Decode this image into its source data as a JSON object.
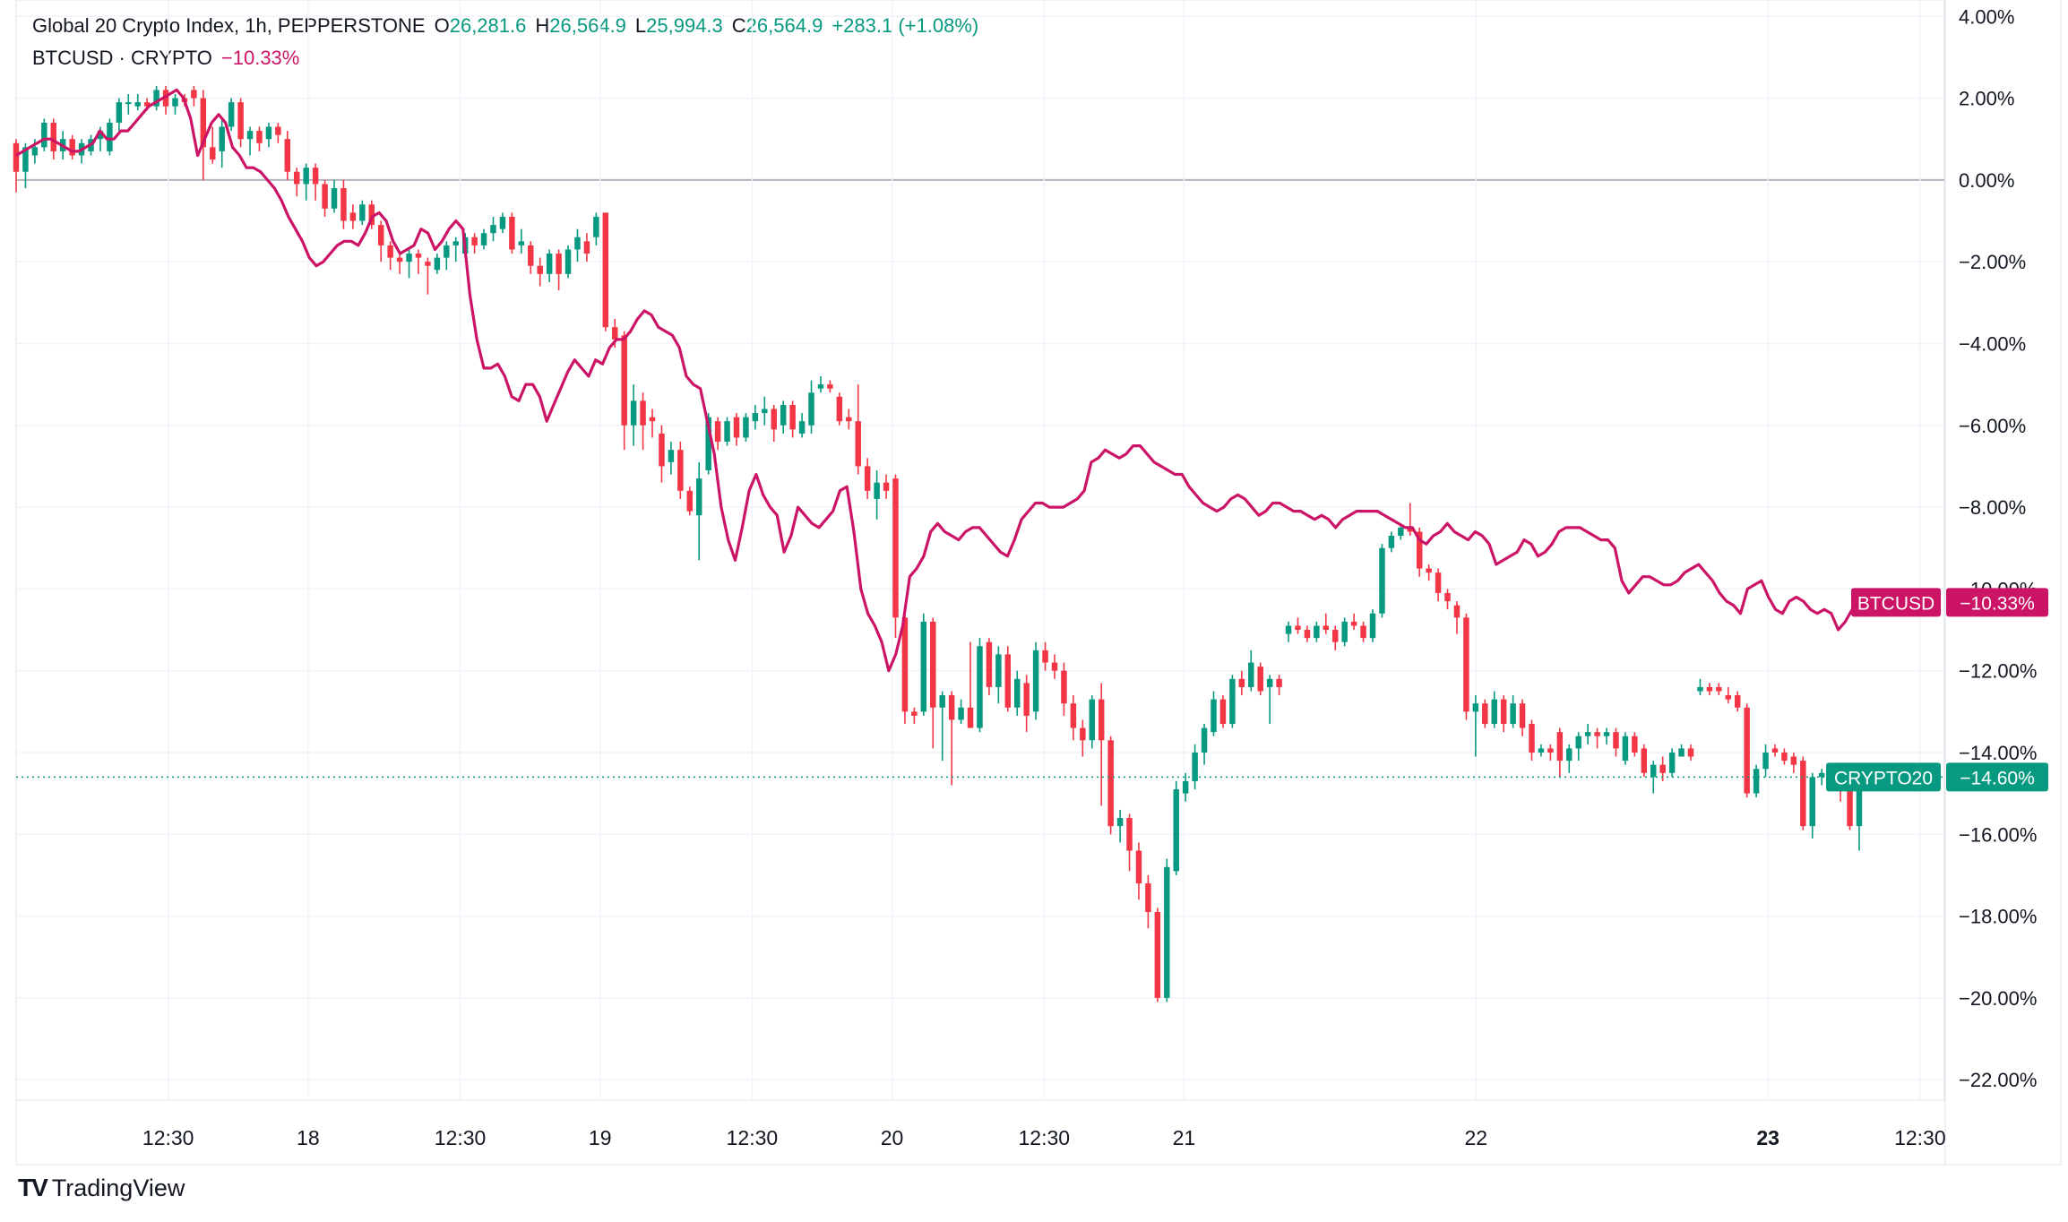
{
  "legend": {
    "symbol_title": "Global 20 Crypto Index, 1h, PEPPERSTONE",
    "open_label": "O",
    "open": "26,281.6",
    "high_label": "H",
    "high": "26,564.9",
    "low_label": "L",
    "low": "25,994.3",
    "close_label": "C",
    "close": "26,564.9",
    "change": "+283.1 (+1.08%)",
    "compare_symbol": "BTCUSD · CRYPTO",
    "compare_change": "−10.33%"
  },
  "branding": {
    "logo_text": "TradingView",
    "logo_icon": "tradingview-logo-icon"
  },
  "colors": {
    "up": "#089981",
    "down": "#f23645",
    "compare": "#cc1466",
    "grid": "#f0f3fa",
    "zero": "#b2b5be"
  },
  "chart_data": {
    "type": "candlestick-with-line",
    "y_unit": "%",
    "ylim": [
      -22.5,
      4.4
    ],
    "y_ticks": [
      "4.00%",
      "2.00%",
      "0.00%",
      "−2.00%",
      "−4.00%",
      "−6.00%",
      "−8.00%",
      "−10.00%",
      "−12.00%",
      "−14.00%",
      "−16.00%",
      "−18.00%",
      "−20.00%",
      "−22.00%"
    ],
    "y_tick_values": [
      4,
      2,
      0,
      -2,
      -4,
      -6,
      -8,
      -10,
      -12,
      -14,
      -16,
      -18,
      -20,
      -22
    ],
    "x_ticks": [
      "12:30",
      "18",
      "12:30",
      "19",
      "12:30",
      "20",
      "12:30",
      "21",
      "22",
      "23",
      "12:30"
    ],
    "x_tick_hours": [
      12.5,
      24,
      36.5,
      48,
      60.5,
      72,
      84.5,
      96,
      120,
      144,
      156.5
    ],
    "x_tick_bold": [
      false,
      false,
      false,
      false,
      false,
      false,
      false,
      false,
      false,
      true,
      false
    ],
    "x_range_hours": [
      0,
      158.5
    ],
    "badges": [
      {
        "label": "BTCUSD",
        "value": "−10.33%",
        "y": -10.33,
        "color": "#cc1466"
      },
      {
        "label": "CRYPTO20",
        "value": "−14.60%",
        "y": -14.6,
        "color": "#089981"
      }
    ],
    "candles": [
      [
        0.9,
        0.2,
        1.0,
        -0.3
      ],
      [
        0.2,
        0.8,
        0.9,
        -0.2
      ],
      [
        0.6,
        0.8,
        1.0,
        0.4
      ],
      [
        0.8,
        1.4,
        1.5,
        0.7
      ],
      [
        1.4,
        0.7,
        1.5,
        0.5
      ],
      [
        0.7,
        1.0,
        1.2,
        0.5
      ],
      [
        1.0,
        0.6,
        1.1,
        0.5
      ],
      [
        0.6,
        0.9,
        1.0,
        0.4
      ],
      [
        0.7,
        1.0,
        1.1,
        0.6
      ],
      [
        1.0,
        1.2,
        1.3,
        0.7
      ],
      [
        0.7,
        1.4,
        1.5,
        0.6
      ],
      [
        1.4,
        1.9,
        2.0,
        1.2
      ],
      [
        1.9,
        1.9,
        2.1,
        1.6
      ],
      [
        1.8,
        1.9,
        2.1,
        1.7
      ],
      [
        1.9,
        1.8,
        2.0,
        1.7
      ],
      [
        1.8,
        2.2,
        2.3,
        1.7
      ],
      [
        2.2,
        1.8,
        2.3,
        1.6
      ],
      [
        1.8,
        2.0,
        2.1,
        1.6
      ],
      [
        2.0,
        1.9,
        2.1,
        1.8
      ],
      [
        2.2,
        2.0,
        2.3,
        1.8
      ],
      [
        2.0,
        0.8,
        2.2,
        0.0
      ],
      [
        0.8,
        0.5,
        1.3,
        0.4
      ],
      [
        0.7,
        1.3,
        1.5,
        0.3
      ],
      [
        1.3,
        1.9,
        2.0,
        1.2
      ],
      [
        1.9,
        1.0,
        2.0,
        0.8
      ],
      [
        1.0,
        1.2,
        1.3,
        0.6
      ],
      [
        1.2,
        0.9,
        1.3,
        0.7
      ],
      [
        1.0,
        1.3,
        1.4,
        0.8
      ],
      [
        1.3,
        1.1,
        1.4,
        0.9
      ],
      [
        1.0,
        0.2,
        1.2,
        0.0
      ],
      [
        0.2,
        -0.1,
        0.3,
        -0.4
      ],
      [
        -0.1,
        0.3,
        0.4,
        -0.5
      ],
      [
        0.3,
        -0.1,
        0.4,
        -0.5
      ],
      [
        -0.1,
        -0.7,
        0.0,
        -0.9
      ],
      [
        -0.7,
        -0.2,
        0.0,
        -0.8
      ],
      [
        -0.2,
        -1.0,
        0.0,
        -1.2
      ],
      [
        -0.8,
        -1.0,
        -0.6,
        -1.2
      ],
      [
        -1.0,
        -0.6,
        -0.5,
        -1.1
      ],
      [
        -0.6,
        -1.1,
        -0.5,
        -1.2
      ],
      [
        -1.1,
        -1.6,
        -1.0,
        -2.0
      ],
      [
        -1.6,
        -1.9,
        -1.5,
        -2.2
      ],
      [
        -1.9,
        -2.0,
        -1.8,
        -2.3
      ],
      [
        -2.0,
        -1.8,
        -1.7,
        -2.4
      ],
      [
        -1.8,
        -1.9,
        -1.7,
        -2.3
      ],
      [
        -2.0,
        -2.1,
        -1.9,
        -2.8
      ],
      [
        -2.2,
        -1.9,
        -1.8,
        -2.3
      ],
      [
        -1.9,
        -1.6,
        -1.5,
        -2.2
      ],
      [
        -1.6,
        -1.5,
        -1.4,
        -2.0
      ],
      [
        -1.8,
        -1.4,
        -1.3,
        -1.9
      ],
      [
        -1.4,
        -1.6,
        -1.3,
        -1.8
      ],
      [
        -1.6,
        -1.3,
        -1.2,
        -1.7
      ],
      [
        -1.3,
        -1.1,
        -0.9,
        -1.5
      ],
      [
        -1.2,
        -0.9,
        -0.8,
        -1.3
      ],
      [
        -0.9,
        -1.7,
        -0.8,
        -1.8
      ],
      [
        -1.6,
        -1.5,
        -1.2,
        -1.8
      ],
      [
        -1.6,
        -2.1,
        -1.5,
        -2.3
      ],
      [
        -2.1,
        -2.3,
        -1.9,
        -2.6
      ],
      [
        -2.3,
        -1.8,
        -1.7,
        -2.5
      ],
      [
        -1.8,
        -2.3,
        -1.7,
        -2.7
      ],
      [
        -2.3,
        -1.7,
        -1.6,
        -2.4
      ],
      [
        -1.7,
        -1.4,
        -1.2,
        -2.0
      ],
      [
        -1.5,
        -1.8,
        -1.3,
        -2.0
      ],
      [
        -1.4,
        -0.9,
        -0.8,
        -1.6
      ],
      [
        -0.8,
        -3.6,
        -0.8,
        -3.7
      ],
      [
        -3.6,
        -3.9,
        -3.4,
        -4.1
      ],
      [
        -3.8,
        -6.0,
        -3.7,
        -6.6
      ],
      [
        -6.0,
        -5.4,
        -5.0,
        -6.5
      ],
      [
        -5.4,
        -6.0,
        -5.2,
        -6.6
      ],
      [
        -5.8,
        -5.9,
        -5.6,
        -6.3
      ],
      [
        -6.2,
        -7.0,
        -6.0,
        -7.4
      ],
      [
        -6.9,
        -6.6,
        -6.4,
        -7.2
      ],
      [
        -6.6,
        -7.6,
        -6.4,
        -7.8
      ],
      [
        -7.6,
        -8.1,
        -7.5,
        -8.2
      ],
      [
        -8.2,
        -7.3,
        -6.9,
        -9.3
      ],
      [
        -7.1,
        -5.8,
        -5.7,
        -7.2
      ],
      [
        -5.9,
        -6.4,
        -5.8,
        -6.6
      ],
      [
        -6.4,
        -5.9,
        -5.8,
        -6.5
      ],
      [
        -5.8,
        -6.3,
        -5.7,
        -6.5
      ],
      [
        -6.3,
        -5.8,
        -5.7,
        -6.4
      ],
      [
        -5.9,
        -5.7,
        -5.5,
        -6.1
      ],
      [
        -5.7,
        -5.6,
        -5.3,
        -6.0
      ],
      [
        -5.6,
        -6.1,
        -5.5,
        -6.4
      ],
      [
        -6.0,
        -5.5,
        -5.4,
        -6.2
      ],
      [
        -5.5,
        -6.1,
        -5.4,
        -6.3
      ],
      [
        -6.2,
        -5.9,
        -5.7,
        -6.3
      ],
      [
        -6.0,
        -5.2,
        -4.9,
        -6.2
      ],
      [
        -5.1,
        -5.0,
        -4.8,
        -5.2
      ],
      [
        -5.0,
        -5.1,
        -4.9,
        -5.2
      ],
      [
        -5.3,
        -5.9,
        -5.2,
        -6.0
      ],
      [
        -5.8,
        -5.9,
        -5.6,
        -6.1
      ],
      [
        -5.9,
        -7.0,
        -5.0,
        -7.2
      ],
      [
        -7.0,
        -7.6,
        -6.8,
        -7.8
      ],
      [
        -7.8,
        -7.4,
        -7.1,
        -8.3
      ],
      [
        -7.4,
        -7.6,
        -7.2,
        -7.8
      ],
      [
        -7.3,
        -10.7,
        -7.2,
        -11.2
      ],
      [
        -10.7,
        -13.0,
        -10.6,
        -13.3
      ],
      [
        -13.0,
        -13.1,
        -12.9,
        -13.3
      ],
      [
        -13.0,
        -10.8,
        -10.6,
        -13.1
      ],
      [
        -10.8,
        -12.9,
        -10.7,
        -13.9
      ],
      [
        -12.9,
        -12.6,
        -12.5,
        -14.2
      ],
      [
        -12.6,
        -13.2,
        -12.5,
        -14.8
      ],
      [
        -13.2,
        -12.9,
        -12.7,
        -13.3
      ],
      [
        -12.9,
        -13.4,
        -11.3,
        -13.4
      ],
      [
        -13.4,
        -11.4,
        -11.2,
        -13.5
      ],
      [
        -11.3,
        -12.4,
        -11.2,
        -12.6
      ],
      [
        -12.4,
        -11.6,
        -11.4,
        -12.8
      ],
      [
        -11.6,
        -12.9,
        -11.4,
        -13.0
      ],
      [
        -12.9,
        -12.2,
        -12.0,
        -13.1
      ],
      [
        -12.3,
        -13.1,
        -12.1,
        -13.5
      ],
      [
        -13.0,
        -11.5,
        -11.3,
        -13.2
      ],
      [
        -11.5,
        -11.8,
        -11.3,
        -12.0
      ],
      [
        -11.8,
        -12.0,
        -11.6,
        -12.2
      ],
      [
        -12.0,
        -12.8,
        -11.8,
        -13.1
      ],
      [
        -12.8,
        -13.4,
        -12.6,
        -13.7
      ],
      [
        -13.4,
        -13.7,
        -13.2,
        -14.1
      ],
      [
        -13.7,
        -12.7,
        -12.6,
        -13.9
      ],
      [
        -12.7,
        -13.7,
        -12.3,
        -15.3
      ],
      [
        -13.7,
        -15.8,
        -13.6,
        -16.0
      ],
      [
        -15.8,
        -15.6,
        -15.4,
        -16.2
      ],
      [
        -15.6,
        -16.4,
        -15.5,
        -16.9
      ],
      [
        -16.4,
        -17.2,
        -16.2,
        -17.6
      ],
      [
        -17.2,
        -17.9,
        -17.0,
        -18.3
      ],
      [
        -17.9,
        -20.0,
        -17.8,
        -20.1
      ],
      [
        -20.0,
        -16.8,
        -16.6,
        -20.1
      ],
      [
        -16.9,
        -14.9,
        -14.7,
        -17.0
      ],
      [
        -15.0,
        -14.7,
        -14.5,
        -15.2
      ],
      [
        -14.7,
        -14.0,
        -13.8,
        -14.9
      ],
      [
        -14.0,
        -13.4,
        -13.3,
        -14.3
      ],
      [
        -13.5,
        -12.7,
        -12.5,
        -13.6
      ],
      [
        -12.7,
        -13.3,
        -12.6,
        -13.4
      ],
      [
        -13.3,
        -12.2,
        -12.1,
        -13.4
      ],
      [
        -12.2,
        -12.4,
        -12.0,
        -12.6
      ],
      [
        -12.4,
        -11.8,
        -11.5,
        -12.5
      ],
      [
        -11.9,
        -12.5,
        -11.8,
        -12.6
      ],
      [
        -12.4,
        -12.2,
        -12.1,
        -13.3
      ],
      [
        -12.2,
        -12.4,
        -12.1,
        -12.6
      ],
      [
        -11.1,
        -10.9,
        -10.8,
        -11.3
      ],
      [
        -10.9,
        -11.0,
        -10.7,
        -11.1
      ],
      [
        -11.0,
        -11.2,
        -10.9,
        -11.3
      ],
      [
        -11.2,
        -10.9,
        -10.8,
        -11.3
      ],
      [
        -10.9,
        -11.0,
        -10.6,
        -11.1
      ],
      [
        -11.0,
        -11.3,
        -10.9,
        -11.5
      ],
      [
        -11.3,
        -10.8,
        -10.7,
        -11.4
      ],
      [
        -10.8,
        -10.9,
        -10.6,
        -11.0
      ],
      [
        -10.9,
        -11.2,
        -10.8,
        -11.3
      ],
      [
        -11.2,
        -10.6,
        -10.5,
        -11.3
      ],
      [
        -10.6,
        -9.0,
        -8.9,
        -10.7
      ],
      [
        -9.0,
        -8.7,
        -8.6,
        -9.1
      ],
      [
        -8.7,
        -8.5,
        -8.4,
        -8.8
      ],
      [
        -8.5,
        -8.6,
        -7.9,
        -8.7
      ],
      [
        -8.6,
        -9.5,
        -8.5,
        -9.7
      ],
      [
        -9.5,
        -9.6,
        -9.4,
        -9.8
      ],
      [
        -9.6,
        -10.1,
        -9.5,
        -10.3
      ],
      [
        -10.1,
        -10.3,
        -10.0,
        -10.5
      ],
      [
        -10.4,
        -10.7,
        -10.3,
        -11.1
      ],
      [
        -10.7,
        -13.0,
        -10.6,
        -13.2
      ],
      [
        -13.0,
        -12.8,
        -12.6,
        -14.1
      ],
      [
        -12.8,
        -13.3,
        -12.7,
        -13.4
      ],
      [
        -13.3,
        -12.7,
        -12.5,
        -13.4
      ],
      [
        -12.7,
        -13.3,
        -12.6,
        -13.5
      ],
      [
        -13.3,
        -12.8,
        -12.6,
        -13.4
      ],
      [
        -12.8,
        -13.4,
        -12.7,
        -13.6
      ],
      [
        -13.3,
        -14.0,
        -13.2,
        -14.2
      ],
      [
        -14.0,
        -13.9,
        -13.8,
        -14.1
      ],
      [
        -13.9,
        -14.0,
        -13.8,
        -14.2
      ],
      [
        -13.5,
        -14.2,
        -13.4,
        -14.6
      ],
      [
        -14.2,
        -13.9,
        -13.8,
        -14.5
      ],
      [
        -13.9,
        -13.6,
        -13.5,
        -14.2
      ],
      [
        -13.6,
        -13.5,
        -13.3,
        -13.8
      ],
      [
        -13.5,
        -13.6,
        -13.4,
        -13.9
      ],
      [
        -13.6,
        -13.5,
        -13.4,
        -13.8
      ],
      [
        -13.5,
        -13.9,
        -13.4,
        -14.1
      ],
      [
        -14.2,
        -13.6,
        -13.5,
        -14.3
      ],
      [
        -13.6,
        -14.0,
        -13.5,
        -14.1
      ],
      [
        -13.9,
        -14.5,
        -13.8,
        -14.6
      ],
      [
        -14.6,
        -14.3,
        -14.2,
        -15.0
      ],
      [
        -14.3,
        -14.5,
        -14.1,
        -14.7
      ],
      [
        -14.5,
        -14.0,
        -13.9,
        -14.6
      ],
      [
        -14.1,
        -13.9,
        -13.8,
        -14.0
      ],
      [
        -13.9,
        -14.1,
        -13.8,
        -14.2
      ],
      [
        -12.5,
        -12.4,
        -12.2,
        -12.6
      ],
      [
        -12.4,
        -12.5,
        -12.3,
        -12.6
      ],
      [
        -12.4,
        -12.5,
        -12.3,
        -12.6
      ],
      [
        -12.6,
        -12.7,
        -12.4,
        -12.8
      ],
      [
        -12.6,
        -12.9,
        -12.5,
        -13.0
      ],
      [
        -12.9,
        -15.0,
        -12.8,
        -15.1
      ],
      [
        -15.0,
        -14.4,
        -14.3,
        -15.1
      ],
      [
        -14.4,
        -14.0,
        -13.8,
        -14.6
      ],
      [
        -13.9,
        -14.0,
        -13.8,
        -14.1
      ],
      [
        -14.0,
        -14.2,
        -13.9,
        -14.3
      ],
      [
        -14.1,
        -14.3,
        -14.0,
        -14.5
      ],
      [
        -14.2,
        -15.8,
        -14.1,
        -15.9
      ],
      [
        -15.8,
        -14.6,
        -14.5,
        -16.1
      ],
      [
        -14.6,
        -14.5,
        -14.4,
        -14.8
      ],
      [
        -14.5,
        -14.6,
        -14.4,
        -14.7
      ],
      [
        -14.5,
        -14.6,
        -14.4,
        -15.2
      ],
      [
        -14.6,
        -15.8,
        -14.5,
        -15.9
      ],
      [
        -15.8,
        -14.6,
        -14.5,
        -16.4
      ]
    ],
    "btc_line": [
      0.6,
      0.7,
      0.8,
      0.9,
      1.0,
      1.0,
      0.9,
      0.8,
      0.7,
      0.7,
      0.8,
      0.9,
      1.2,
      1.0,
      1.0,
      1.2,
      1.2,
      1.4,
      1.6,
      1.8,
      1.9,
      2.0,
      2.1,
      2.2,
      2.0,
      1.5,
      0.6,
      1.0,
      1.4,
      1.6,
      1.4,
      0.8,
      0.6,
      0.3,
      0.3,
      0.2,
      0.0,
      -0.2,
      -0.5,
      -0.9,
      -1.2,
      -1.5,
      -1.9,
      -2.1,
      -2.0,
      -1.8,
      -1.6,
      -1.5,
      -1.5,
      -1.6,
      -1.3,
      -0.9,
      -0.8,
      -1.0,
      -1.5,
      -1.8,
      -1.7,
      -1.6,
      -1.2,
      -1.3,
      -1.7,
      -1.5,
      -1.2,
      -1.0,
      -1.2,
      -2.8,
      -3.9,
      -4.6,
      -4.6,
      -4.5,
      -4.8,
      -5.3,
      -5.4,
      -5.0,
      -5.0,
      -5.3,
      -5.9,
      -5.5,
      -5.1,
      -4.7,
      -4.4,
      -4.6,
      -4.8,
      -4.4,
      -4.5,
      -4.1,
      -3.9,
      -3.9,
      -3.7,
      -3.4,
      -3.2,
      -3.3,
      -3.6,
      -3.7,
      -3.8,
      -4.1,
      -4.8,
      -5.0,
      -5.1,
      -5.9,
      -6.7,
      -8.0,
      -8.8,
      -9.3,
      -8.5,
      -7.6,
      -7.2,
      -7.7,
      -8.0,
      -8.2,
      -9.1,
      -8.7,
      -8.0,
      -8.2,
      -8.4,
      -8.5,
      -8.3,
      -8.1,
      -7.6,
      -7.5,
      -8.6,
      -10.0,
      -10.6,
      -10.9,
      -11.3,
      -12.0,
      -11.6,
      -10.9,
      -9.7,
      -9.5,
      -9.2,
      -8.6,
      -8.4,
      -8.6,
      -8.7,
      -8.8,
      -8.6,
      -8.5,
      -8.5,
      -8.7,
      -8.9,
      -9.1,
      -9.2,
      -8.8,
      -8.3,
      -8.1,
      -7.9,
      -7.9,
      -8.0,
      -8.0,
      -8.0,
      -7.9,
      -7.8,
      -7.6,
      -6.9,
      -6.8,
      -6.6,
      -6.7,
      -6.8,
      -6.7,
      -6.5,
      -6.5,
      -6.7,
      -6.9,
      -7.0,
      -7.1,
      -7.2,
      -7.2,
      -7.5,
      -7.7,
      -7.9,
      -8.0,
      -8.1,
      -8.0,
      -7.8,
      -7.7,
      -7.8,
      -8.0,
      -8.2,
      -8.1,
      -7.9,
      -7.9,
      -8.0,
      -8.1,
      -8.1,
      -8.2,
      -8.3,
      -8.2,
      -8.3,
      -8.5,
      -8.3,
      -8.2,
      -8.1,
      -8.1,
      -8.1,
      -8.1,
      -8.2,
      -8.3,
      -8.4,
      -8.5,
      -8.5,
      -8.8,
      -8.9,
      -8.7,
      -8.6,
      -8.4,
      -8.6,
      -8.7,
      -8.8,
      -8.6,
      -8.7,
      -8.9,
      -9.4,
      -9.3,
      -9.2,
      -9.1,
      -8.8,
      -8.9,
      -9.2,
      -9.1,
      -8.9,
      -8.6,
      -8.5,
      -8.5,
      -8.5,
      -8.6,
      -8.7,
      -8.8,
      -8.8,
      -9.0,
      -9.8,
      -10.1,
      -9.9,
      -9.7,
      -9.7,
      -9.8,
      -9.9,
      -9.9,
      -9.8,
      -9.6,
      -9.5,
      -9.4,
      -9.6,
      -9.8,
      -10.1,
      -10.3,
      -10.4,
      -10.6,
      -10.0,
      -9.9,
      -9.8,
      -10.2,
      -10.5,
      -10.6,
      -10.3,
      -10.2,
      -10.3,
      -10.5,
      -10.6,
      -10.5,
      -10.6,
      -11.0,
      -10.8,
      -10.5,
      -10.33
    ]
  }
}
